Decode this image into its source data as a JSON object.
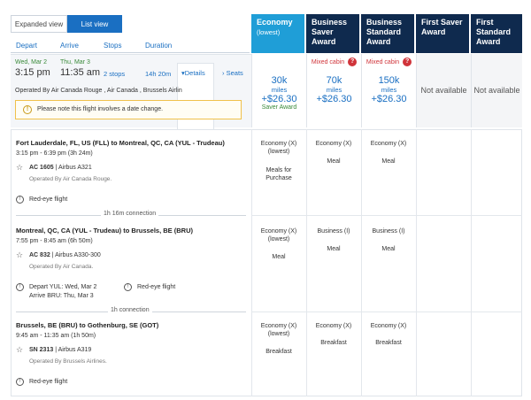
{
  "view_toggle": {
    "expanded": "Expanded view",
    "list": "List view"
  },
  "columns": {
    "depart": "Depart",
    "arrive": "Arrive",
    "stops": "Stops",
    "duration": "Duration"
  },
  "fares": [
    {
      "title": "Economy",
      "sub": "(lowest)"
    },
    {
      "title": "Business Saver Award",
      "sub": ""
    },
    {
      "title": "Business Standard Award",
      "sub": ""
    },
    {
      "title": "First Saver Award",
      "sub": ""
    },
    {
      "title": "First Standard Award",
      "sub": ""
    }
  ],
  "summary": {
    "depart_date": "Wed, Mar 2",
    "arrive_date": "Thu, Mar 3",
    "depart_time": "3:15 pm",
    "arrive_time": "11:35 am",
    "stops": "2 stops",
    "duration": "14h 20m",
    "details": "Details",
    "seats": "Seats",
    "operated": "Operated By Air Canada Rouge , Air Canada , Brussels Airlin",
    "notice": "Please note this flight involves a date change."
  },
  "prices": {
    "economy": {
      "miles": "30k",
      "miles_label": "miles",
      "price": "+$26.30",
      "note": "Saver Award"
    },
    "business_saver": {
      "mixed": "Mixed cabin",
      "miles": "70k",
      "miles_label": "miles",
      "price": "+$26.30"
    },
    "business_standard": {
      "mixed": "Mixed cabin",
      "miles": "150k",
      "miles_label": "miles",
      "price": "+$26.30"
    },
    "first_saver": {
      "na": "Not available"
    },
    "first_standard": {
      "na": "Not available"
    }
  },
  "segments": [
    {
      "route": "Fort Lauderdale, FL, US (FLL) to Montreal, QC, CA (YUL - Trudeau)",
      "time": "3:15 pm - 6:39 pm (3h 24m)",
      "flight": "AC 1605",
      "aircraft": "| Airbus A321",
      "operated": "Operated By Air Canada Rouge.",
      "note1": "Red-eye flight",
      "economy_cabin": "Economy (X) (lowest)",
      "economy_meal": "Meals for Purchase",
      "bsa_cabin": "Economy (X)",
      "bsa_meal": "Meal",
      "bst_cabin": "Economy (X)",
      "bst_meal": "Meal"
    },
    {
      "route": "Montreal, QC, CA (YUL - Trudeau) to Brussels, BE (BRU)",
      "time": "7:55 pm - 8:45 am (6h 50m)",
      "flight": "AC 832",
      "aircraft": "| Airbus A330-300",
      "operated": "Operated By Air Canada.",
      "note1": "Depart YUL: Wed, Mar 2",
      "note1b": "Arrive BRU: Thu, Mar 3",
      "note2": "Red-eye flight",
      "economy_cabin": "Economy (X) (lowest)",
      "economy_meal": "Meal",
      "bsa_cabin": "Business (I)",
      "bsa_meal": "Meal",
      "bst_cabin": "Business (I)",
      "bst_meal": "Meal"
    },
    {
      "route": "Brussels, BE (BRU) to Gothenburg, SE (GOT)",
      "time": "9:45 am - 11:35 am (1h 50m)",
      "flight": "SN 2313",
      "aircraft": "| Airbus A319",
      "operated": "Operated By Brussels Airlines.",
      "note1": "Red-eye flight",
      "economy_cabin": "Economy (X) (lowest)",
      "economy_meal": "Breakfast",
      "bsa_cabin": "Economy (X)",
      "bsa_meal": "Breakfast",
      "bst_cabin": "Economy (X)",
      "bst_meal": "Breakfast"
    }
  ],
  "connections": [
    "1h 16m connection",
    "1h connection"
  ]
}
